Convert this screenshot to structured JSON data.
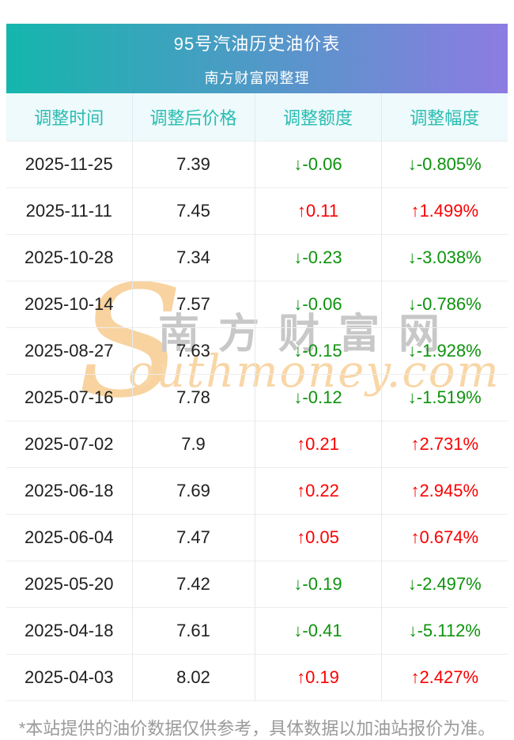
{
  "banner": {
    "title": "95号汽油历史油价表",
    "subtitle": "南方财富网整理",
    "gradient_left": "#14b6ac",
    "gradient_right": "#8d7ce2"
  },
  "table": {
    "columns": [
      "调整时间",
      "调整后价格",
      "调整额度",
      "调整幅度"
    ],
    "rows": [
      {
        "date": "2025-11-25",
        "price": "7.39",
        "change": "-0.06",
        "percent": "-0.805%",
        "direction": "down"
      },
      {
        "date": "2025-11-11",
        "price": "7.45",
        "change": "0.11",
        "percent": "1.499%",
        "direction": "up"
      },
      {
        "date": "2025-10-28",
        "price": "7.34",
        "change": "-0.23",
        "percent": "-3.038%",
        "direction": "down"
      },
      {
        "date": "2025-10-14",
        "price": "7.57",
        "change": "-0.06",
        "percent": "-0.786%",
        "direction": "down"
      },
      {
        "date": "2025-08-27",
        "price": "7.63",
        "change": "-0.15",
        "percent": "-1.928%",
        "direction": "down"
      },
      {
        "date": "2025-07-16",
        "price": "7.78",
        "change": "-0.12",
        "percent": "-1.519%",
        "direction": "down"
      },
      {
        "date": "2025-07-02",
        "price": "7.9",
        "change": "0.21",
        "percent": "2.731%",
        "direction": "up"
      },
      {
        "date": "2025-06-18",
        "price": "7.69",
        "change": "0.22",
        "percent": "2.945%",
        "direction": "up"
      },
      {
        "date": "2025-06-04",
        "price": "7.47",
        "change": "0.05",
        "percent": "0.674%",
        "direction": "up"
      },
      {
        "date": "2025-05-20",
        "price": "7.42",
        "change": "-0.19",
        "percent": "-2.497%",
        "direction": "down"
      },
      {
        "date": "2025-04-18",
        "price": "7.61",
        "change": "-0.41",
        "percent": "-5.112%",
        "direction": "down"
      },
      {
        "date": "2025-04-03",
        "price": "8.02",
        "change": "0.19",
        "percent": "2.427%",
        "direction": "up"
      }
    ],
    "colors": {
      "up": "#fb0000",
      "down": "#0d930d",
      "header_text": "#2abcb2",
      "header_bg": "#eefafb"
    }
  },
  "icons": {
    "up_arrow": "↑",
    "down_arrow": "↓"
  },
  "watermark": {
    "swash": "S",
    "cn": "南方财富网",
    "en": "outhmoney.com"
  },
  "footer": {
    "note": "*本站提供的油价数据仅供参考，具体数据以加油站报价为准。"
  }
}
